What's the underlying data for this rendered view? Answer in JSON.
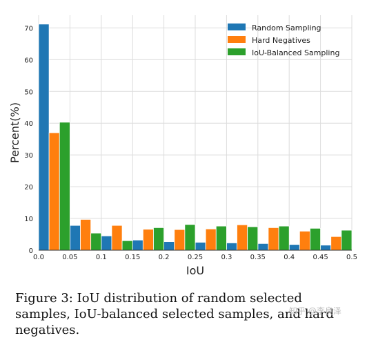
{
  "chart_data": {
    "type": "bar",
    "xlabel": "IoU",
    "ylabel": "Percent(%)",
    "xlim": [
      0,
      0.5
    ],
    "ylim": [
      0,
      74
    ],
    "x_ticks": [
      "0.0",
      "0.05",
      "0.1",
      "0.15",
      "0.2",
      "0.25",
      "0.3",
      "0.35",
      "0.4",
      "0.45",
      "0.5"
    ],
    "y_ticks": [
      "0",
      "10",
      "20",
      "30",
      "40",
      "50",
      "60",
      "70"
    ],
    "bin_starts": [
      0.0,
      0.05,
      0.1,
      0.15,
      0.2,
      0.25,
      0.3,
      0.35,
      0.4,
      0.45
    ],
    "grid": true,
    "legend_position": "top-right",
    "series": [
      {
        "name": "Random Sampling",
        "color": "#1f77b4",
        "values": [
          71.2,
          7.8,
          4.5,
          3.2,
          2.7,
          2.5,
          2.3,
          2.1,
          1.8,
          1.6
        ]
      },
      {
        "name": "Hard Negatives",
        "color": "#ff7f0e",
        "values": [
          37.0,
          9.7,
          7.8,
          6.6,
          6.5,
          6.7,
          8.0,
          7.1,
          6.0,
          4.3
        ]
      },
      {
        "name": "IoU-Balanced Sampling",
        "color": "#2ca02c",
        "values": [
          40.3,
          5.4,
          3.0,
          7.1,
          8.1,
          7.6,
          7.4,
          7.6,
          6.9,
          6.3
        ]
      }
    ]
  },
  "caption": "Figure 3: IoU distribution of random selected samples, IoU-balanced selected samples, and hard negatives.",
  "watermark": "知乎 @李良泽"
}
